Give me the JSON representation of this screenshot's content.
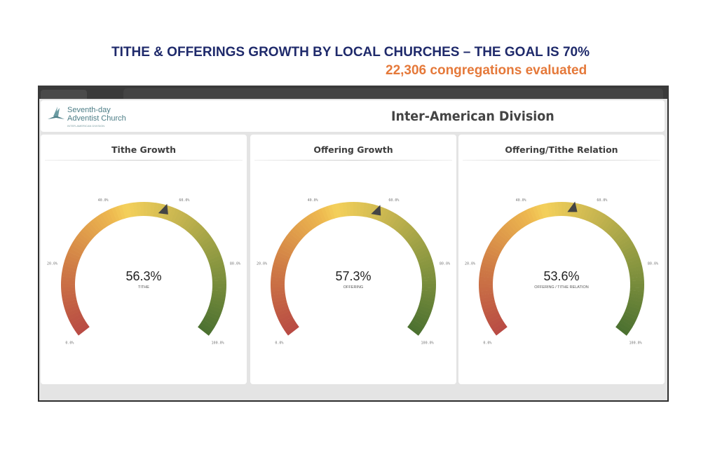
{
  "slide": {
    "title": "TITHE & OFFERINGS GROWTH BY LOCAL CHURCHES – THE GOAL IS 70%",
    "subtitle": "22,306 congregations evaluated"
  },
  "header": {
    "logo_line1": "Seventh-day",
    "logo_line2": "Adventist Church",
    "logo_small": "INTER-AMERICAN DIVISION",
    "title": "Inter-American Division"
  },
  "ticks": [
    "0.0%",
    "20.0%",
    "40.0%",
    "60.0%",
    "80.0%",
    "100.0%"
  ],
  "colors": {
    "low": "#b84a44",
    "mid": "#f4d05a",
    "high": "#4a7030",
    "needle": "#444444"
  },
  "gauges": [
    {
      "title": "Tithe Growth",
      "value": 56.3,
      "value_label": "56.3%",
      "label": "TITHE"
    },
    {
      "title": "Offering Growth",
      "value": 57.3,
      "value_label": "57.3%",
      "label": "OFFERING"
    },
    {
      "title": "Offering/Tithe Relation",
      "value": 53.6,
      "value_label": "53.6%",
      "label": "OFFERING / TITHE RELATION"
    }
  ]
}
